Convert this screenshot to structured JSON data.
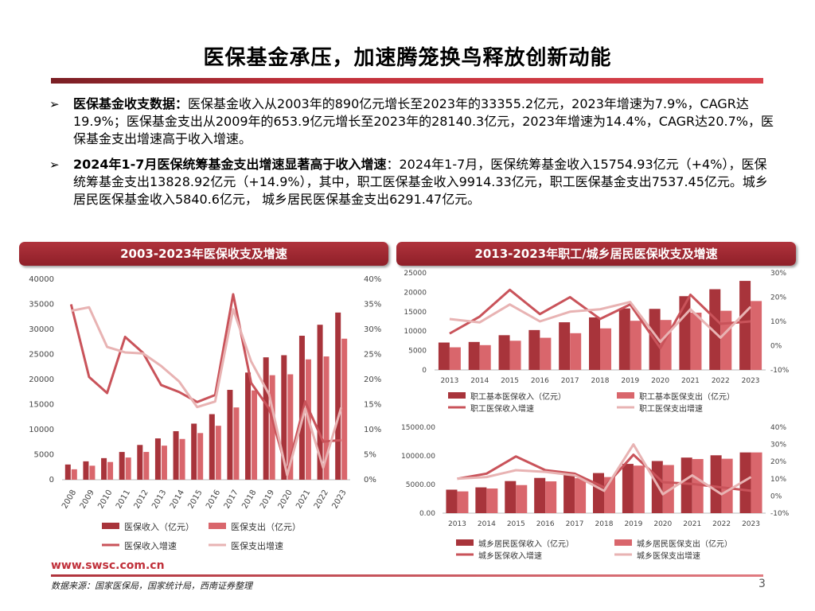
{
  "title": "医保基金承压，加速腾笼换鸟释放创新动能",
  "bullets": [
    {
      "marker": "➢",
      "bold": "医保基金收支数据：",
      "text": "医保基金收入从2003年的890亿元增长至2023年的33355.2亿元，2023年增速为7.9%，CAGR达19.9%；医保基金支出从2009年的653.9亿元增长至2023年的28140.3亿元，2023年增速为14.4%，CAGR达20.7%，医保基金支出增速高于收入增速。"
    },
    {
      "marker": "➢",
      "bold": "2024年1-7月医保统筹基金支出增速显著高于收入增速",
      "text": "：2024年1-7月，医保统筹基金收入15754.93亿元（+4%），医保统筹基金支出13828.92亿元（+14.9%），其中，职工医保基金收入9914.33亿元，职工医保基金支出7537.45亿元。城乡居民医保基金收入5840.6亿元， 城乡居民医保基金支出6291.47亿元。"
    }
  ],
  "panels": {
    "left_title": "2003-2023年医保收支及增速",
    "right_title": "2013-2023年职工/城乡居民医保收支及增速"
  },
  "colors": {
    "bar1": "#a8343b",
    "bar2": "#d9666c",
    "line1": "#c9535a",
    "line2": "#e8b3b3",
    "accent": "#c0303a"
  },
  "chart_data": [
    {
      "type": "bar",
      "categories": [
        "2008",
        "2009",
        "2010",
        "2011",
        "2012",
        "2013",
        "2014",
        "2015",
        "2016",
        "2017",
        "2018",
        "2019",
        "2020",
        "2021",
        "2022",
        "2023"
      ],
      "series": [
        {
          "name": "医保收入（亿元）",
          "axis": "left",
          "kind": "bar",
          "values": [
            3040,
            3672,
            4309,
            5539,
            6939,
            8248,
            9687,
            11193,
            13084,
            17932,
            21384,
            24421,
            24846,
            28728,
            30922,
            33355
          ]
        },
        {
          "name": "医保支出（亿元）",
          "axis": "left",
          "kind": "bar",
          "values": [
            2084,
            2797,
            3538,
            4431,
            5544,
            6801,
            8134,
            9312,
            10767,
            14422,
            17822,
            20854,
            21032,
            24011,
            24597,
            28140
          ]
        },
        {
          "name": "医保收入增速",
          "axis": "right",
          "kind": "line",
          "values": [
            35.0,
            20.5,
            17.3,
            28.5,
            25.3,
            18.9,
            17.5,
            15.5,
            16.9,
            37.0,
            19.3,
            14.2,
            1.7,
            15.6,
            7.6,
            7.9
          ]
        },
        {
          "name": "医保支出增速",
          "axis": "right",
          "kind": "line",
          "values": [
            33.7,
            34.4,
            26.5,
            25.4,
            25.2,
            22.7,
            19.6,
            14.5,
            15.6,
            34.0,
            23.6,
            17.0,
            0.9,
            14.2,
            2.4,
            14.4
          ]
        }
      ],
      "ylim": [
        0,
        40000
      ],
      "y_ticks": [
        "0",
        "5000",
        "10000",
        "15000",
        "20000",
        "25000",
        "30000",
        "35000",
        "40000"
      ],
      "y2lim": [
        0,
        40
      ],
      "y2_ticks": [
        "0%",
        "5%",
        "10%",
        "15%",
        "20%",
        "25%",
        "30%",
        "35%",
        "40%"
      ],
      "legend": "bottom",
      "grid": false
    },
    {
      "type": "bar",
      "categories": [
        "2013",
        "2014",
        "2015",
        "2016",
        "2017",
        "2018",
        "2019",
        "2020",
        "2021",
        "2022",
        "2023"
      ],
      "series": [
        {
          "name": "职工基本医保收入（亿元）",
          "axis": "left",
          "kind": "bar",
          "values": [
            7061,
            7208,
            8950,
            10274,
            12278,
            13538,
            15845,
            15732,
            19003,
            20793,
            22935
          ]
        },
        {
          "name": "职工基本医保支出（亿元）",
          "axis": "left",
          "kind": "bar",
          "values": [
            5830,
            6390,
            7523,
            8287,
            9467,
            10707,
            12663,
            12867,
            14752,
            15244,
            17751
          ]
        },
        {
          "name": "职工医保收入增速",
          "axis": "right",
          "kind": "line",
          "values": [
            5,
            12,
            23,
            13,
            20,
            11,
            17,
            -1,
            21,
            9,
            10
          ]
        },
        {
          "name": "职工医保支出增速",
          "axis": "right",
          "kind": "line",
          "values": [
            11,
            9.6,
            17,
            10,
            14,
            15,
            18,
            1.6,
            15,
            3.3,
            16
          ]
        }
      ],
      "ylim": [
        0,
        25000
      ],
      "y_ticks": [
        "0",
        "5000",
        "10000",
        "15000",
        "20000",
        "25000"
      ],
      "y2lim": [
        -10,
        30
      ],
      "y2_ticks": [
        "-10%",
        "0%",
        "10%",
        "20%",
        "30%"
      ],
      "legend": "bottom",
      "grid": false
    },
    {
      "type": "bar",
      "categories": [
        "2013",
        "2014",
        "2015",
        "2016",
        "2017",
        "2018",
        "2019",
        "2020",
        "2021",
        "2022",
        "2023"
      ],
      "series": [
        {
          "name": "城乡居民医保收入（亿元）",
          "axis": "left",
          "kind": "bar",
          "values": [
            4100,
            4500,
            5600,
            6150,
            6700,
            7000,
            8600,
            9100,
            9700,
            10100,
            10600
          ]
        },
        {
          "name": "城乡居民医保支出（亿元）",
          "axis": "left",
          "kind": "bar",
          "values": [
            3800,
            4300,
            4900,
            5550,
            6100,
            6300,
            8300,
            8400,
            9450,
            9500,
            10600
          ]
        },
        {
          "name": "城乡医保收入增速",
          "axis": "right",
          "kind": "line",
          "values": [
            10,
            13,
            23,
            15,
            13,
            5,
            24,
            8,
            7,
            5,
            3
          ]
        },
        {
          "name": "城乡医保支出增速",
          "axis": "right",
          "kind": "line",
          "values": [
            10,
            11,
            15,
            14,
            12,
            3,
            30,
            1,
            12,
            1,
            11
          ]
        }
      ],
      "ylim": [
        0,
        15000
      ],
      "y_ticks": [
        "0.00",
        "5000.00",
        "10000.00",
        "15000.00"
      ],
      "y2lim": [
        -10,
        40
      ],
      "y2_ticks": [
        "-10%",
        "0%",
        "10%",
        "20%",
        "30%",
        "40%"
      ],
      "legend": "bottom",
      "grid": false
    }
  ],
  "footer": {
    "url": "www.swsc.com.cn",
    "source": "数据来源：国家医保局，国家统计局，西南证券整理",
    "page": "3"
  }
}
